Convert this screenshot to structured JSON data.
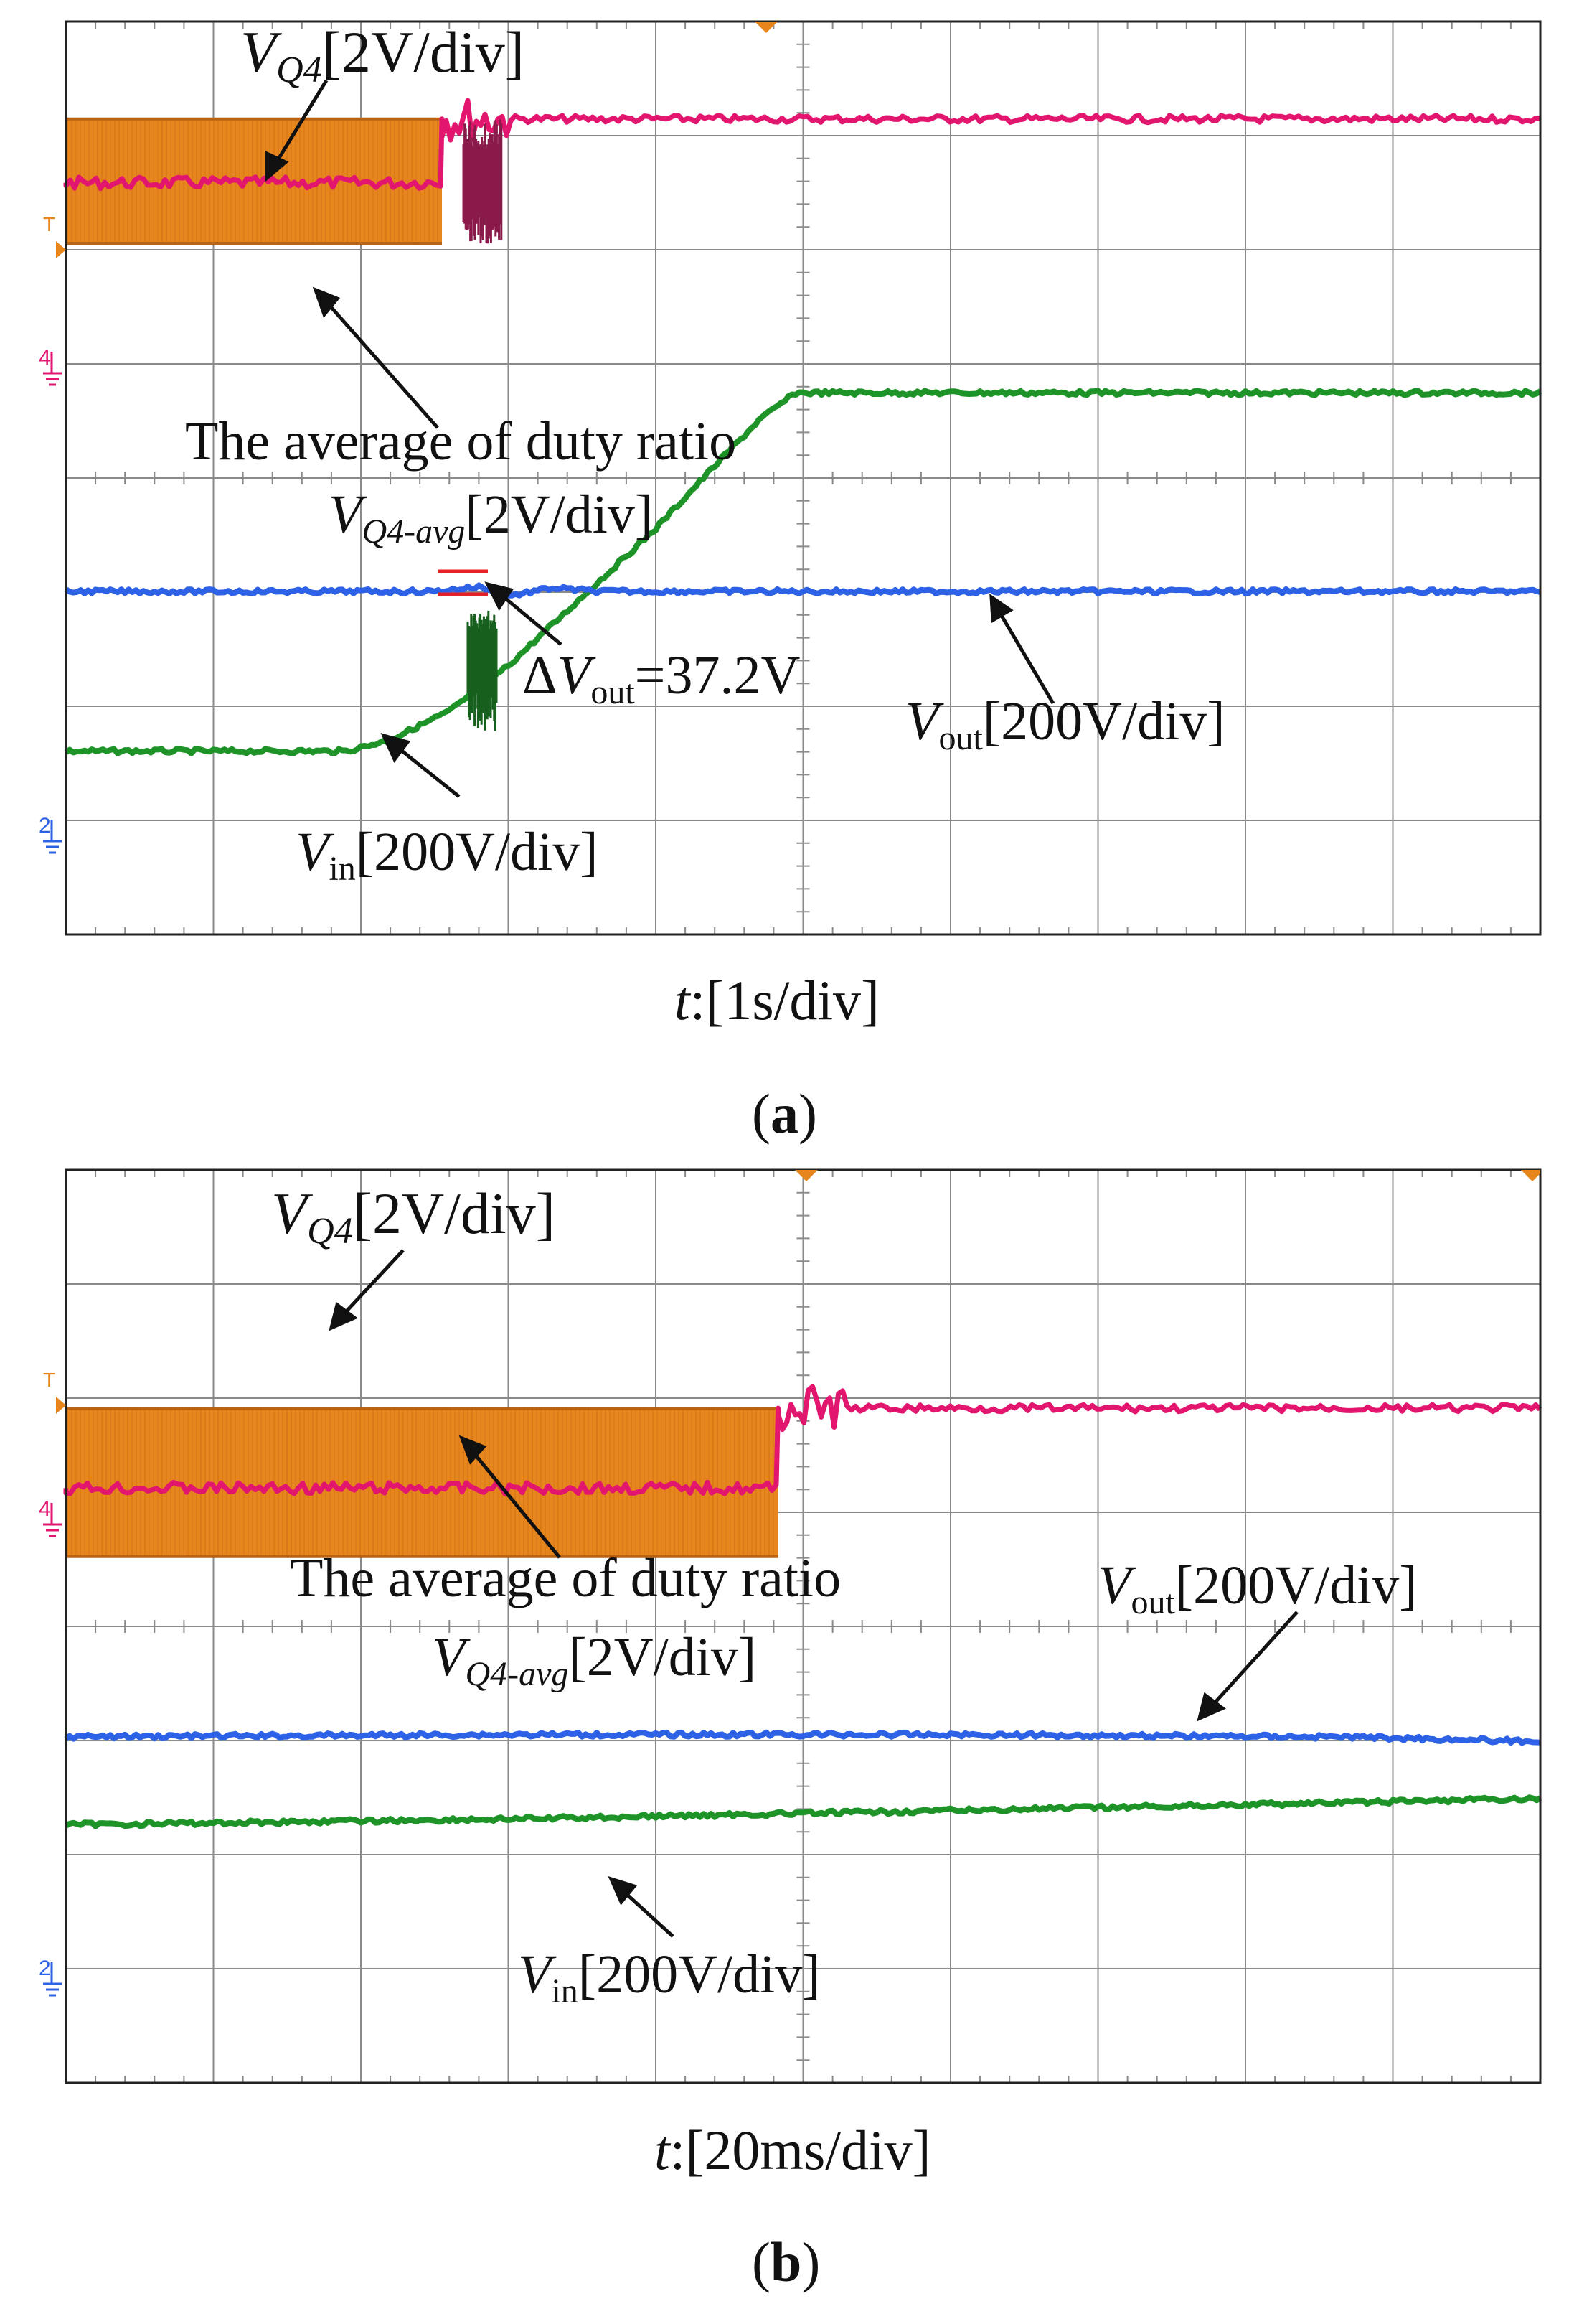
{
  "colors": {
    "vq4": "#e8861e",
    "vq4_edge": "#b86212",
    "avg": "#e3166f",
    "vin": "#1e9428",
    "vout": "#2e62e6",
    "grid": "#8a8a8a",
    "frame": "#222222",
    "delta_marker": "#e8202a"
  },
  "chart_data": [
    {
      "id": "a",
      "type": "line",
      "caption": "a",
      "xlabel_var": "t",
      "xlabel_unit": ":[1s/div]",
      "divisions": {
        "x": 10,
        "y": 8
      },
      "channel_markers": [
        "T",
        "4",
        "2"
      ],
      "series": [
        {
          "name": "VQ4",
          "label_main": "V",
          "label_sub": "Q4",
          "label_tail": "[2V/div]",
          "description": "switching band from 0 to 2.55 div, then off",
          "band_div": [
            3.05,
            4.14
          ],
          "end_div": 2.55
        },
        {
          "name": "average of duty ratio",
          "label": "The average of duty ratio",
          "level_before_div": 3.58,
          "level_after_div": 4.14
        },
        {
          "name": "VQ4-avg",
          "label_main": "V",
          "label_sub": "Q4-avg",
          "label_tail": "[2V/div]"
        },
        {
          "name": "Vin",
          "label_main": "V",
          "label_sub": "in",
          "label_tail": "[200V/div]",
          "x_div": [
            0,
            1.9,
            2.2,
            2.6,
            3.0,
            3.5,
            4.0,
            4.4,
            4.7,
            4.95,
            6.0,
            10.0
          ],
          "y_div": [
            -1.4,
            -1.4,
            -1.3,
            -1.05,
            -0.65,
            -0.05,
            0.55,
            1.1,
            1.5,
            1.74,
            1.74,
            1.74
          ]
        },
        {
          "name": "Vout",
          "label_main": "V",
          "label_sub": "out",
          "label_tail": "[200V/div]",
          "x_div": [
            0,
            2.5,
            2.8,
            3.0,
            3.3,
            3.6,
            10.0
          ],
          "y_div": [
            0,
            0,
            0.04,
            -0.04,
            0.03,
            0,
            0
          ]
        }
      ],
      "annotation": {
        "prefix": "Δ",
        "main": "V",
        "sub": "out",
        "tail": "=37.2V"
      }
    },
    {
      "id": "b",
      "type": "line",
      "caption": "b",
      "xlabel_var": "t",
      "xlabel_unit": ":[20ms/div]",
      "divisions": {
        "x": 10,
        "y": 8
      },
      "channel_markers": [
        "T",
        "4",
        "2"
      ],
      "series": [
        {
          "name": "VQ4",
          "label_main": "V",
          "label_sub": "Q4",
          "label_tail": "[2V/div]",
          "band_div": [
            2.8,
            4.1
          ],
          "end_div": 4.83
        },
        {
          "name": "average of duty ratio",
          "label": "The average of duty ratio",
          "level_before_div": 3.4,
          "level_after_div": 4.1
        },
        {
          "name": "VQ4-avg",
          "label_main": "V",
          "label_sub": "Q4-avg",
          "label_tail": "[2V/div]"
        },
        {
          "name": "Vout",
          "label_main": "V",
          "label_sub": "out",
          "label_tail": "[200V/div]",
          "x_div": [
            0,
            3,
            6,
            8.7,
            10.0
          ],
          "y_div": [
            1.22,
            1.24,
            1.24,
            1.22,
            1.18
          ]
        },
        {
          "name": "Vin",
          "label_main": "V",
          "label_sub": "in",
          "label_tail": "[200V/div]",
          "x_div": [
            0,
            3,
            5,
            7,
            10.0
          ],
          "y_div": [
            0.45,
            0.5,
            0.55,
            0.6,
            0.68
          ]
        }
      ]
    }
  ]
}
